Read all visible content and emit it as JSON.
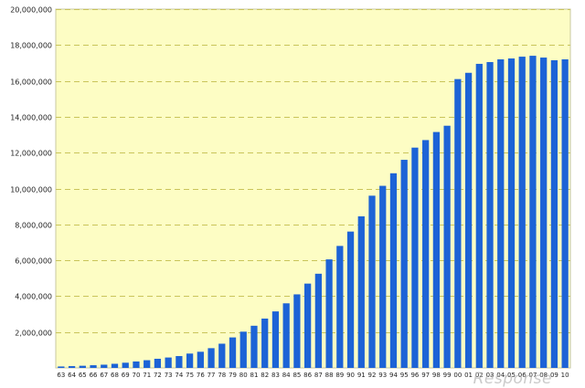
{
  "watermark": "Response",
  "chart_data": {
    "type": "bar",
    "categories": [
      "63",
      "64",
      "65",
      "66",
      "67",
      "68",
      "69",
      "70",
      "71",
      "72",
      "73",
      "74",
      "75",
      "76",
      "77",
      "78",
      "79",
      "80",
      "81",
      "82",
      "83",
      "84",
      "85",
      "86",
      "87",
      "88",
      "89",
      "90",
      "91",
      "92",
      "93",
      "94",
      "95",
      "96",
      "97",
      "98",
      "99",
      "00",
      "01",
      "02",
      "03",
      "04",
      "05",
      "06",
      "07",
      "08",
      "09",
      "10"
    ],
    "values": [
      80000,
      100000,
      120000,
      150000,
      180000,
      230000,
      290000,
      360000,
      430000,
      510000,
      580000,
      660000,
      800000,
      900000,
      1100000,
      1350000,
      1700000,
      2020000,
      2350000,
      2750000,
      3150000,
      3600000,
      4100000,
      4700000,
      5250000,
      6050000,
      6800000,
      7600000,
      8450000,
      9600000,
      10150000,
      10850000,
      11600000,
      12280000,
      12700000,
      13150000,
      13500000,
      16100000,
      16450000,
      16950000,
      17050000,
      17200000,
      17250000,
      17350000,
      17400000,
      17300000,
      17150000,
      17200000
    ],
    "ylim": [
      0,
      20000000
    ],
    "yticks": [
      2000000,
      4000000,
      6000000,
      8000000,
      10000000,
      12000000,
      14000000,
      16000000,
      18000000,
      20000000
    ],
    "ytick_labels": [
      "2,000,000",
      "4,000,000",
      "6,000,000",
      "8,000,000",
      "10,000,000",
      "12,000,000",
      "14,000,000",
      "16,000,000",
      "18,000,000",
      "20,000,000"
    ],
    "title": "",
    "xlabel": "",
    "ylabel": "",
    "grid": true,
    "colors": {
      "bar": "#1d63d6",
      "plot_background": "#fdfdc4",
      "grid": "#c9c45a",
      "frame": "#c8c8a0"
    }
  }
}
